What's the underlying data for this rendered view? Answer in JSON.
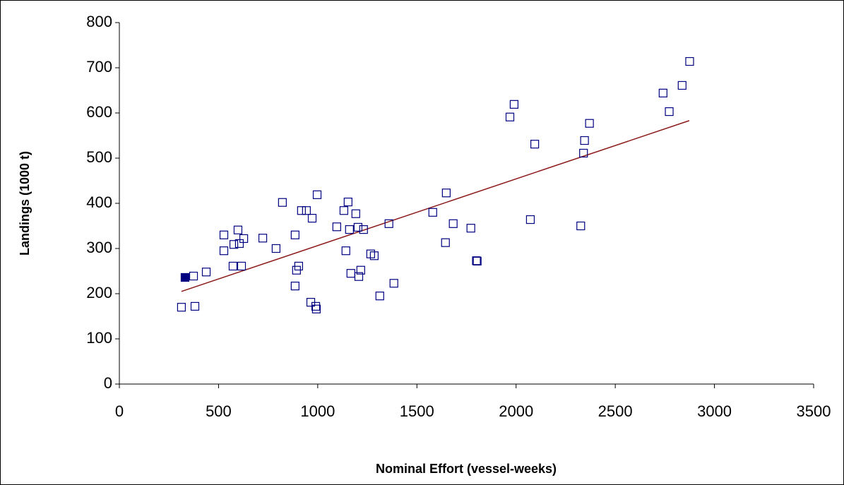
{
  "chart_data": {
    "type": "scatter",
    "x_label": "Nominal Effort (vessel-weeks)",
    "y_label": "Landings (1000 t)",
    "xlim": [
      0,
      3500
    ],
    "xticks": [
      0,
      500,
      1000,
      1500,
      2000,
      2500,
      3000,
      3500
    ],
    "ylim": [
      0,
      800
    ],
    "yticks": [
      0,
      100,
      200,
      300,
      400,
      500,
      600,
      700,
      800
    ],
    "series": [
      {
        "color": "#000080",
        "fill": "none",
        "x": [
          313,
          381,
          374,
          438,
          527,
          527,
          573,
          577,
          598,
          605,
          616,
          627,
          723,
          790,
          822,
          886,
          886,
          893,
          904,
          918,
          943,
          965,
          972,
          990,
          993,
          997,
          1096,
          1132,
          1142,
          1153,
          1160,
          1167,
          1192,
          1203,
          1207,
          1217,
          1231,
          1267,
          1285,
          1313,
          1359,
          1384,
          1580,
          1644,
          1648,
          1683,
          1772,
          1800,
          1804,
          1969,
          1990,
          2072,
          2094,
          2326,
          2340,
          2345,
          2370,
          2741,
          2772,
          2837,
          2875
        ],
        "values": [
          170,
          172,
          239,
          248,
          330,
          295,
          261,
          309,
          341,
          311,
          261,
          322,
          323,
          300,
          402,
          330,
          217,
          252,
          261,
          384,
          384,
          181,
          367,
          172,
          166,
          419,
          348,
          384,
          295,
          403,
          342,
          245,
          377,
          347,
          238,
          252,
          342,
          288,
          284,
          195,
          355,
          223,
          380,
          313,
          423,
          355,
          345,
          273,
          272,
          591,
          619,
          364,
          531,
          350,
          511,
          539,
          577,
          644,
          603,
          661,
          714
        ]
      },
      {
        "color": "#000080",
        "fill": "#000080",
        "x": [
          331
        ],
        "values": [
          236
        ]
      }
    ],
    "trendline": {
      "color": "#8b1a1a",
      "x": [
        313,
        2873
      ],
      "values": [
        205,
        583
      ]
    }
  }
}
